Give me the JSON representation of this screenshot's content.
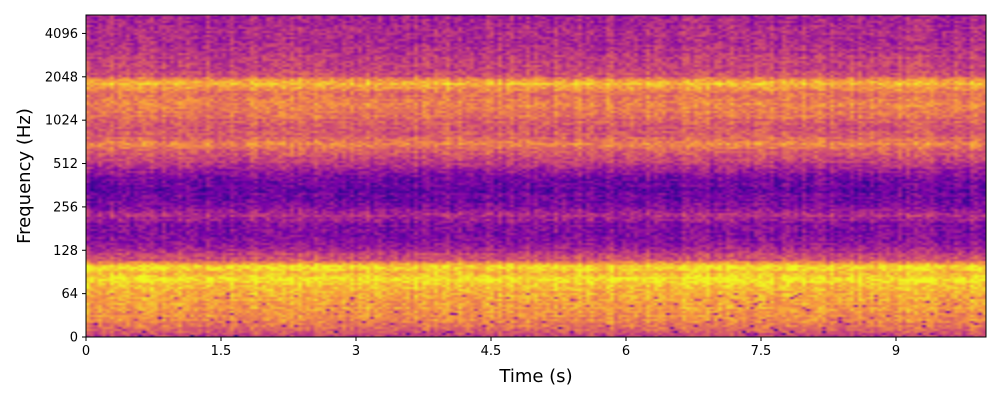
{
  "chart_data": {
    "type": "heatmap",
    "subtype": "spectrogram",
    "title": "",
    "xlabel": "Time (s)",
    "ylabel": "Frequency (Hz)",
    "colormap": "plasma",
    "xlim": [
      0,
      10
    ],
    "ylim": [
      0,
      5500
    ],
    "y_scale": "symlog base 2",
    "x_ticks": [
      {
        "value": 0,
        "label": "0"
      },
      {
        "value": 1.5,
        "label": "1.5"
      },
      {
        "value": 3,
        "label": "3"
      },
      {
        "value": 4.5,
        "label": "4.5"
      },
      {
        "value": 6,
        "label": "6"
      },
      {
        "value": 7.5,
        "label": "7.5"
      },
      {
        "value": 9,
        "label": "9"
      }
    ],
    "y_ticks": [
      {
        "value": 0,
        "label": "0"
      },
      {
        "value": 64,
        "label": "64"
      },
      {
        "value": 128,
        "label": "128"
      },
      {
        "value": 256,
        "label": "256"
      },
      {
        "value": 512,
        "label": "512"
      },
      {
        "value": 1024,
        "label": "1024"
      },
      {
        "value": 2048,
        "label": "2048"
      },
      {
        "value": 4096,
        "label": "4096"
      }
    ],
    "grid": false,
    "legend": "none",
    "energy_profile": [
      {
        "freq": 0,
        "level": 0.45
      },
      {
        "freq": 10,
        "level": 0.62
      },
      {
        "freq": 30,
        "level": 0.74
      },
      {
        "freq": 55,
        "level": 0.78
      },
      {
        "freq": 70,
        "level": 0.82
      },
      {
        "freq": 80,
        "level": 0.95
      },
      {
        "freq": 90,
        "level": 0.85
      },
      {
        "freq": 100,
        "level": 0.95
      },
      {
        "freq": 108,
        "level": 0.58
      },
      {
        "freq": 120,
        "level": 0.48
      },
      {
        "freq": 140,
        "level": 0.33
      },
      {
        "freq": 170,
        "level": 0.25
      },
      {
        "freq": 200,
        "level": 0.3
      },
      {
        "freq": 225,
        "level": 0.44
      },
      {
        "freq": 250,
        "level": 0.26
      },
      {
        "freq": 300,
        "level": 0.22
      },
      {
        "freq": 380,
        "level": 0.2
      },
      {
        "freq": 450,
        "level": 0.33
      },
      {
        "freq": 520,
        "level": 0.48
      },
      {
        "freq": 600,
        "level": 0.55
      },
      {
        "freq": 700,
        "level": 0.72
      },
      {
        "freq": 800,
        "level": 0.56
      },
      {
        "freq": 1000,
        "level": 0.58
      },
      {
        "freq": 1300,
        "level": 0.72
      },
      {
        "freq": 1600,
        "level": 0.63
      },
      {
        "freq": 1850,
        "level": 0.86
      },
      {
        "freq": 2100,
        "level": 0.52
      },
      {
        "freq": 2600,
        "level": 0.48
      },
      {
        "freq": 3200,
        "level": 0.43
      },
      {
        "freq": 4000,
        "level": 0.4
      },
      {
        "freq": 5500,
        "level": 0.36
      }
    ]
  }
}
